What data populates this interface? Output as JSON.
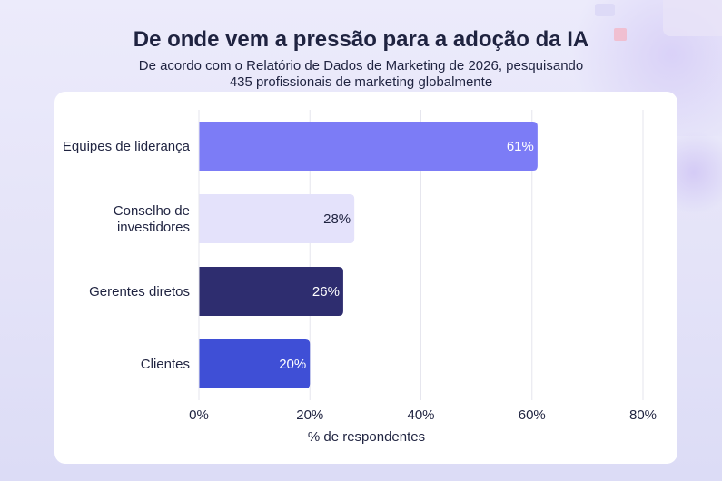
{
  "header": {
    "title": "De onde vem a pressão para a adoção da IA",
    "subtitle_line1": "De acordo com o Relatório de Dados de Marketing de 2026, pesquisando",
    "subtitle_line2": "435 profissionais de marketing globalmente"
  },
  "chart_data": {
    "type": "bar",
    "orientation": "horizontal",
    "title": "De onde vem a pressão para a adoção da IA",
    "subtitle": "De acordo com o Relatório de Dados de Marketing de 2026, pesquisando 435 profissionais de marketing globalmente",
    "categories": [
      [
        "Equipes de liderança"
      ],
      [
        "Conselho de",
        "investidores"
      ],
      [
        "Gerentes diretos"
      ],
      [
        "Clientes"
      ]
    ],
    "values": [
      61,
      28,
      26,
      20
    ],
    "value_labels": [
      "61%",
      "28%",
      "26%",
      "20%"
    ],
    "bar_colors": [
      "#7c7cf6",
      "#e4e2fb",
      "#2e2d6f",
      "#3f4fd6"
    ],
    "label_colors": [
      "#ffffff",
      "#1f2340",
      "#ffffff",
      "#ffffff"
    ],
    "xlabel": "% de respondentes",
    "ylabel": "",
    "xlim": [
      0,
      80
    ],
    "xticks": [
      0,
      20,
      40,
      60,
      80
    ],
    "xtick_labels": [
      "0%",
      "20%",
      "40%",
      "60%",
      "80%"
    ],
    "grid": "vertical",
    "legend": "none"
  }
}
